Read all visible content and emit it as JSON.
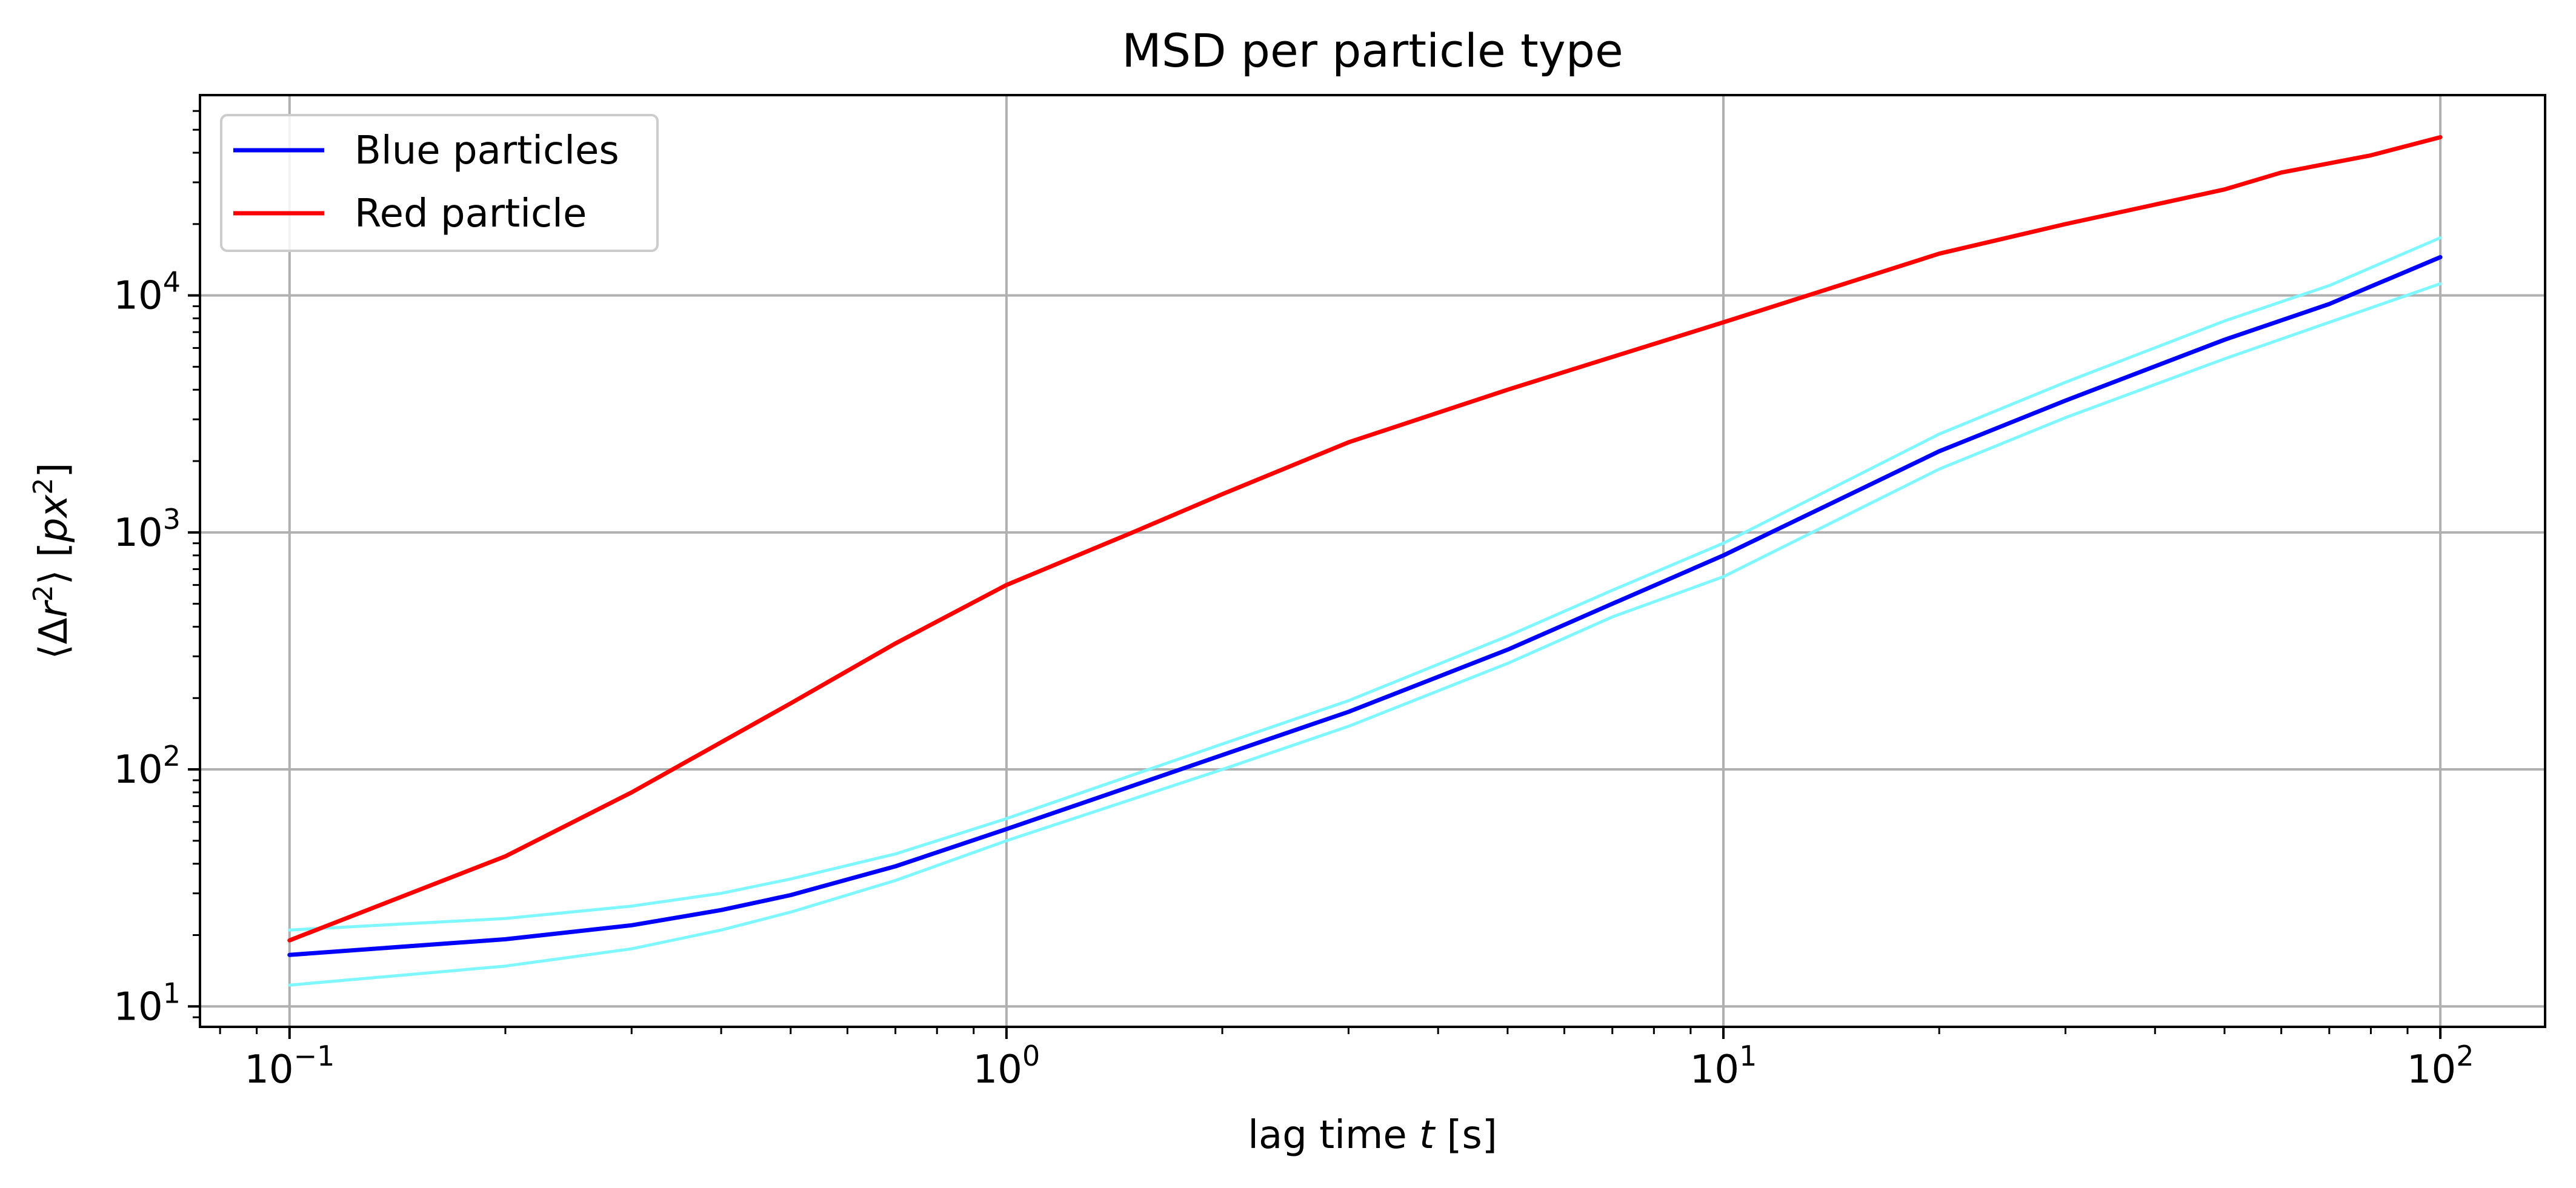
{
  "chart_data": {
    "type": "line",
    "title": "MSD per particle type",
    "xlabel": {
      "pre": "lag time ",
      "var": "t",
      "post": " [s]"
    },
    "ylabel": {
      "open": "⟨Δ",
      "r": "r",
      "sup": "2",
      "close": "⟩ [",
      "px": "px",
      "sup2": "2",
      "end": "]"
    },
    "xscale": "log",
    "yscale": "log",
    "xlim": [
      0.075,
      140
    ],
    "ylim": [
      8.2,
      70000
    ],
    "grid": true,
    "legend": "top-left",
    "x_ticks": [
      {
        "value": 0.1,
        "base": "10",
        "exp": "−1"
      },
      {
        "value": 1,
        "base": "10",
        "exp": "0"
      },
      {
        "value": 10,
        "base": "10",
        "exp": "1"
      },
      {
        "value": 100,
        "base": "10",
        "exp": "2"
      }
    ],
    "y_ticks": [
      {
        "value": 10,
        "base": "10",
        "exp": "1"
      },
      {
        "value": 100,
        "base": "10",
        "exp": "2"
      },
      {
        "value": 1000,
        "base": "10",
        "exp": "3"
      },
      {
        "value": 10000,
        "base": "10",
        "exp": "4"
      }
    ],
    "series": [
      {
        "name": "Blue particles",
        "color": "#0000ff",
        "legend": true,
        "x": [
          0.1,
          0.2,
          0.3,
          0.4,
          0.5,
          0.7,
          1,
          2,
          3,
          5,
          7,
          10,
          20,
          30,
          50,
          70,
          100
        ],
        "y": [
          16.5,
          19.2,
          22,
          25.5,
          29.5,
          39,
          56,
          115,
          175,
          320,
          500,
          800,
          2200,
          3600,
          6500,
          9200,
          14500
        ]
      },
      {
        "name": "Red particle",
        "color": "#ff0000",
        "legend": true,
        "x": [
          0.1,
          0.2,
          0.3,
          0.5,
          0.7,
          1,
          1.5,
          2,
          3,
          5,
          7,
          10,
          20,
          30,
          50,
          60,
          80,
          100
        ],
        "y": [
          19,
          43,
          80,
          190,
          340,
          600,
          1000,
          1450,
          2400,
          4000,
          5500,
          7700,
          15000,
          20000,
          28000,
          33000,
          39000,
          46500
        ]
      },
      {
        "name": "",
        "color": "#7ff7ff",
        "legend": false,
        "x": [
          0.1,
          0.2,
          0.3,
          0.4,
          0.5,
          0.7,
          1,
          2,
          3,
          5,
          7,
          10,
          20,
          30,
          50,
          70,
          100
        ],
        "y": [
          21,
          23.5,
          26.5,
          30,
          34.5,
          44,
          62,
          128,
          195,
          365,
          570,
          900,
          2600,
          4300,
          7800,
          11000,
          17500
        ]
      },
      {
        "name": "",
        "color": "#7ff7ff",
        "legend": false,
        "x": [
          0.1,
          0.2,
          0.3,
          0.4,
          0.5,
          0.7,
          1,
          2,
          3,
          5,
          7,
          10,
          20,
          30,
          50,
          70,
          100
        ],
        "y": [
          12.3,
          14.8,
          17.5,
          21,
          25,
          34,
          50,
          100,
          152,
          280,
          440,
          650,
          1850,
          3050,
          5400,
          7700,
          11200
        ]
      }
    ]
  }
}
